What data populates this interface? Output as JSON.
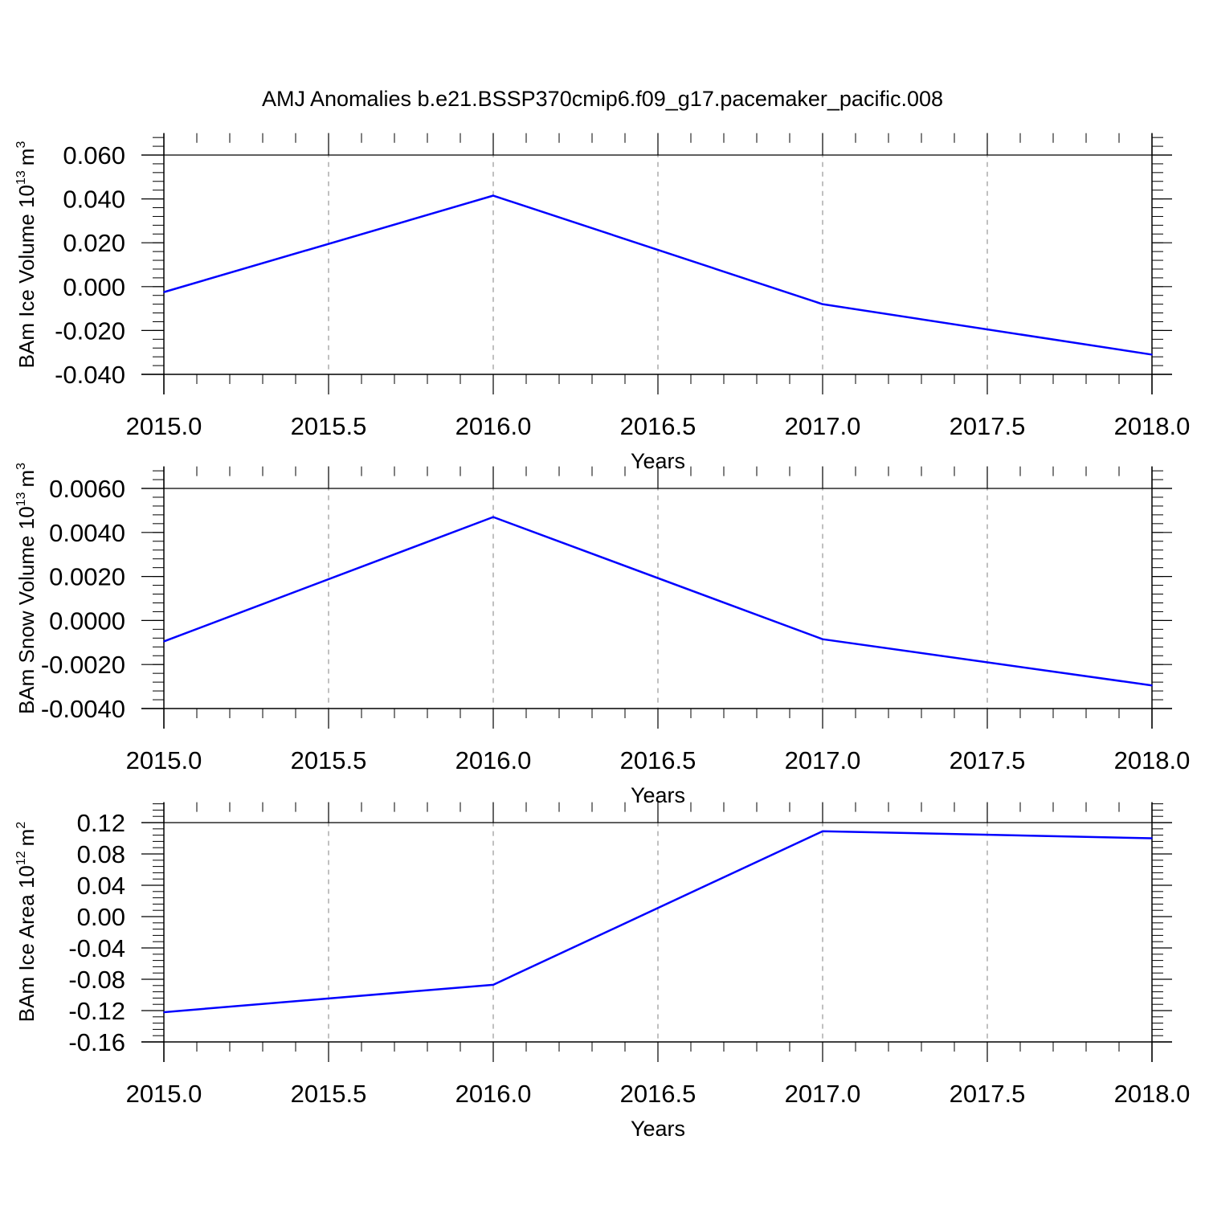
{
  "figure": {
    "title": "AMJ Anomalies b.e21.BSSP370cmip6.f09_g17.pacemaker_pacific.008"
  },
  "style": {
    "line_color": "#0000ff",
    "axis_color": "#000000",
    "grid_color": "#808080",
    "background": "#ffffff"
  },
  "chart_data": [
    {
      "type": "line",
      "title": "",
      "xlabel": "Years",
      "ylabel": "BAm Ice Volume 10",
      "ylabel_sup": "13",
      "ylabel_unit": "m",
      "ylabel_unit_sup": "3",
      "x": [
        2015,
        2016,
        2017,
        2018
      ],
      "series": [
        {
          "values": [
            -0.0025,
            0.0415,
            -0.008,
            -0.031
          ]
        }
      ],
      "xlim": [
        2015.0,
        2018.0
      ],
      "ylim": [
        -0.04,
        0.06
      ],
      "xticks": [
        2015.0,
        2015.5,
        2016.0,
        2016.5,
        2017.0,
        2017.5,
        2018.0
      ],
      "xtick_labels": [
        "2015.0",
        "2015.5",
        "2016.0",
        "2016.5",
        "2017.0",
        "2017.5",
        "2018.0"
      ],
      "yticks": [
        -0.04,
        -0.02,
        0.0,
        0.02,
        0.04,
        0.06
      ],
      "ytick_labels": [
        "-0.040",
        "-0.020",
        "0.000",
        "0.020",
        "0.040",
        "0.060"
      ],
      "ylim_top": 0.07,
      "ylim_bottom": -0.04,
      "grid": "vertical dashed at major x ticks",
      "legend": "none"
    },
    {
      "type": "line",
      "title": "",
      "xlabel": "Years",
      "ylabel": "BAm Snow Volume 10",
      "ylabel_sup": "13",
      "ylabel_unit": "m",
      "ylabel_unit_sup": "3",
      "x": [
        2015,
        2016,
        2017,
        2018
      ],
      "series": [
        {
          "values": [
            -0.00095,
            0.0047,
            -0.00085,
            -0.00295
          ]
        }
      ],
      "xlim": [
        2015.0,
        2018.0
      ],
      "ylim": [
        -0.004,
        0.006
      ],
      "xticks": [
        2015.0,
        2015.5,
        2016.0,
        2016.5,
        2017.0,
        2017.5,
        2018.0
      ],
      "xtick_labels": [
        "2015.0",
        "2015.5",
        "2016.0",
        "2016.5",
        "2017.0",
        "2017.5",
        "2018.0"
      ],
      "yticks": [
        -0.004,
        -0.002,
        0.0,
        0.002,
        0.004,
        0.006
      ],
      "ytick_labels": [
        "-0.0040",
        "-0.0020",
        "0.0000",
        "0.0020",
        "0.0040",
        "0.0060"
      ],
      "ylim_top": 0.007,
      "ylim_bottom": -0.004,
      "grid": "vertical dashed at major x ticks",
      "legend": "none"
    },
    {
      "type": "line",
      "title": "",
      "xlabel": "Years",
      "ylabel": "BAm Ice Area 10",
      "ylabel_sup": "12",
      "ylabel_unit": "m",
      "ylabel_unit_sup": "2",
      "x": [
        2015,
        2016,
        2017,
        2018
      ],
      "series": [
        {
          "values": [
            -0.122,
            -0.087,
            0.109,
            0.1
          ]
        }
      ],
      "xlim": [
        2015.0,
        2018.0
      ],
      "ylim": [
        -0.16,
        0.12
      ],
      "xticks": [
        2015.0,
        2015.5,
        2016.0,
        2016.5,
        2017.0,
        2017.5,
        2018.0
      ],
      "xtick_labels": [
        "2015.0",
        "2015.5",
        "2016.0",
        "2016.5",
        "2017.0",
        "2017.5",
        "2018.0"
      ],
      "yticks": [
        -0.16,
        -0.12,
        -0.08,
        -0.04,
        0.0,
        0.04,
        0.08,
        0.12
      ],
      "ytick_labels": [
        "-0.16",
        "-0.12",
        "-0.08",
        "-0.04",
        "0.00",
        "0.04",
        "0.08",
        "0.12"
      ],
      "ylim_top": 0.146,
      "ylim_bottom": -0.16,
      "grid": "vertical dashed at major x ticks",
      "legend": "none"
    }
  ]
}
